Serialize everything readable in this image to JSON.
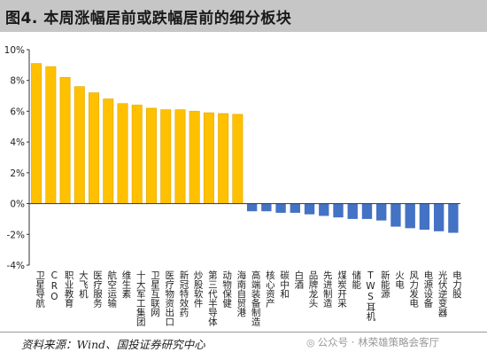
{
  "title": "图4. 本周涨幅居前或跌幅居前的细分板块",
  "source": "资料来源：Wind、国投证券研究中心",
  "watermark": {
    "icon": "wechat-icon",
    "text": "公众号 · 林荣雄策略会客厅"
  },
  "colors": {
    "positive_bar": "#FFC000",
    "positive_bar_edge": "#e0a800",
    "negative_bar": "#4472C4",
    "axis": "#333333"
  },
  "chart_data": {
    "type": "bar",
    "title": "",
    "xlabel": "",
    "ylabel": "",
    "ylim": [
      -4,
      10
    ],
    "yticks": [
      -4,
      -2,
      0,
      2,
      4,
      6,
      8,
      10
    ],
    "ytick_labels": [
      "-4%",
      "-2%",
      "0%",
      "2%",
      "4%",
      "6%",
      "8%",
      "10%"
    ],
    "grid": false,
    "categories": [
      "卫星导航",
      "CRO",
      "职业教育",
      "大飞机",
      "医疗服务",
      "航空运输",
      "维生素",
      "十大军工集团",
      "卫星互联网",
      "医疗物资出口",
      "新冠特效药",
      "炒股软件",
      "第三代半导体",
      "动物保健",
      "海南自贸港",
      "高端装备制造",
      "核心资产",
      "碳中和",
      "白酒",
      "品牌龙头",
      "先进制造",
      "煤炭开采",
      "储能",
      "TWS耳机",
      "新能源",
      "火电",
      "风力发电",
      "电源设备",
      "光伏逆变器",
      "电力股"
    ],
    "values": [
      9.1,
      8.9,
      8.2,
      7.6,
      7.2,
      6.8,
      6.5,
      6.4,
      6.2,
      6.1,
      6.1,
      6.0,
      5.9,
      5.85,
      5.8,
      -0.5,
      -0.5,
      -0.6,
      -0.6,
      -0.7,
      -0.8,
      -0.9,
      -1.0,
      -1.0,
      -1.1,
      -1.5,
      -1.6,
      -1.7,
      -1.8,
      -1.9
    ]
  }
}
